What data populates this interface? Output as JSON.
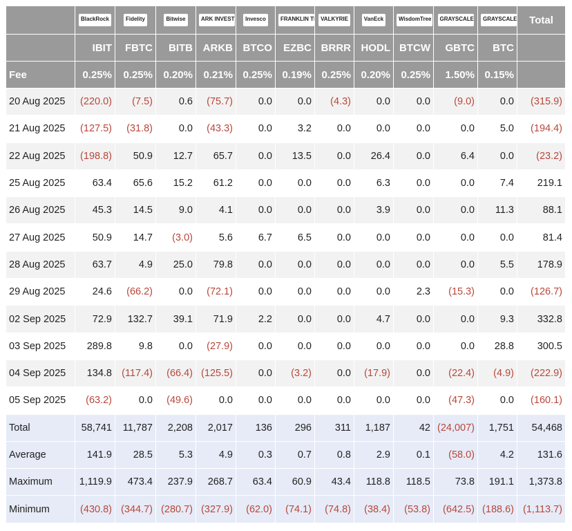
{
  "header": {
    "logos": [
      "BlackRock",
      "Fidelity",
      "Bitwise",
      "ARK INVEST",
      "Invesco",
      "FRANKLIN TEMPLETON",
      "VALKYRIE",
      "VanEck",
      "WisdomTree",
      "GRAYSCALE",
      "GRAYSCALE"
    ],
    "total_label": "Total",
    "tickers": [
      "IBIT",
      "FBTC",
      "BITB",
      "ARKB",
      "BTCO",
      "EZBC",
      "BRRR",
      "HODL",
      "BTCW",
      "GBTC",
      "BTC"
    ],
    "fee_label": "Fee",
    "fees": [
      "0.25%",
      "0.25%",
      "0.20%",
      "0.21%",
      "0.25%",
      "0.19%",
      "0.25%",
      "0.20%",
      "0.25%",
      "1.50%",
      "0.15%"
    ]
  },
  "rows": [
    {
      "date": "20 Aug 2025",
      "cells": [
        "(220.0)",
        "(7.5)",
        "0.6",
        "(75.7)",
        "0.0",
        "0.0",
        "(4.3)",
        "0.0",
        "0.0",
        "(9.0)",
        "0.0",
        "(315.9)"
      ]
    },
    {
      "date": "21 Aug 2025",
      "cells": [
        "(127.5)",
        "(31.8)",
        "0.0",
        "(43.3)",
        "0.0",
        "3.2",
        "0.0",
        "0.0",
        "0.0",
        "0.0",
        "5.0",
        "(194.4)"
      ]
    },
    {
      "date": "22 Aug 2025",
      "cells": [
        "(198.8)",
        "50.9",
        "12.7",
        "65.7",
        "0.0",
        "13.5",
        "0.0",
        "26.4",
        "0.0",
        "6.4",
        "0.0",
        "(23.2)"
      ]
    },
    {
      "date": "25 Aug 2025",
      "cells": [
        "63.4",
        "65.6",
        "15.2",
        "61.2",
        "0.0",
        "0.0",
        "0.0",
        "6.3",
        "0.0",
        "0.0",
        "7.4",
        "219.1"
      ]
    },
    {
      "date": "26 Aug 2025",
      "cells": [
        "45.3",
        "14.5",
        "9.0",
        "4.1",
        "0.0",
        "0.0",
        "0.0",
        "3.9",
        "0.0",
        "0.0",
        "11.3",
        "88.1"
      ]
    },
    {
      "date": "27 Aug 2025",
      "cells": [
        "50.9",
        "14.7",
        "(3.0)",
        "5.6",
        "6.7",
        "6.5",
        "0.0",
        "0.0",
        "0.0",
        "0.0",
        "0.0",
        "81.4"
      ]
    },
    {
      "date": "28 Aug 2025",
      "cells": [
        "63.7",
        "4.9",
        "25.0",
        "79.8",
        "0.0",
        "0.0",
        "0.0",
        "0.0",
        "0.0",
        "0.0",
        "5.5",
        "178.9"
      ]
    },
    {
      "date": "29 Aug 2025",
      "cells": [
        "24.6",
        "(66.2)",
        "0.0",
        "(72.1)",
        "0.0",
        "0.0",
        "0.0",
        "0.0",
        "2.3",
        "(15.3)",
        "0.0",
        "(126.7)"
      ]
    },
    {
      "date": "02 Sep 2025",
      "cells": [
        "72.9",
        "132.7",
        "39.1",
        "71.9",
        "2.2",
        "0.0",
        "0.0",
        "4.7",
        "0.0",
        "0.0",
        "9.3",
        "332.8"
      ]
    },
    {
      "date": "03 Sep 2025",
      "cells": [
        "289.8",
        "9.8",
        "0.0",
        "(27.9)",
        "0.0",
        "0.0",
        "0.0",
        "0.0",
        "0.0",
        "0.0",
        "28.8",
        "300.5"
      ]
    },
    {
      "date": "04 Sep 2025",
      "cells": [
        "134.8",
        "(117.4)",
        "(66.4)",
        "(125.5)",
        "0.0",
        "(3.2)",
        "0.0",
        "(17.9)",
        "0.0",
        "(22.4)",
        "(4.9)",
        "(222.9)"
      ]
    },
    {
      "date": "05 Sep 2025",
      "cells": [
        "(63.2)",
        "0.0",
        "(49.6)",
        "0.0",
        "0.0",
        "0.0",
        "0.0",
        "0.0",
        "0.0",
        "(47.3)",
        "0.0",
        "(160.1)"
      ]
    }
  ],
  "summary": [
    {
      "label": "Total",
      "cells": [
        "58,741",
        "11,787",
        "2,208",
        "2,017",
        "136",
        "296",
        "311",
        "1,187",
        "42",
        "(24,007)",
        "1,751",
        "54,468"
      ]
    },
    {
      "label": "Average",
      "cells": [
        "141.9",
        "28.5",
        "5.3",
        "4.9",
        "0.3",
        "0.7",
        "0.8",
        "2.9",
        "0.1",
        "(58.0)",
        "4.2",
        "131.6"
      ]
    },
    {
      "label": "Maximum",
      "cells": [
        "1,119.9",
        "473.4",
        "237.9",
        "268.7",
        "63.4",
        "60.9",
        "43.4",
        "118.8",
        "118.5",
        "73.8",
        "191.1",
        "1,373.8"
      ]
    },
    {
      "label": "Minimum",
      "cells": [
        "(430.8)",
        "(344.7)",
        "(280.7)",
        "(327.9)",
        "(62.0)",
        "(74.1)",
        "(74.8)",
        "(38.4)",
        "(53.8)",
        "(642.5)",
        "(188.6)",
        "(1,113.7)"
      ]
    }
  ]
}
